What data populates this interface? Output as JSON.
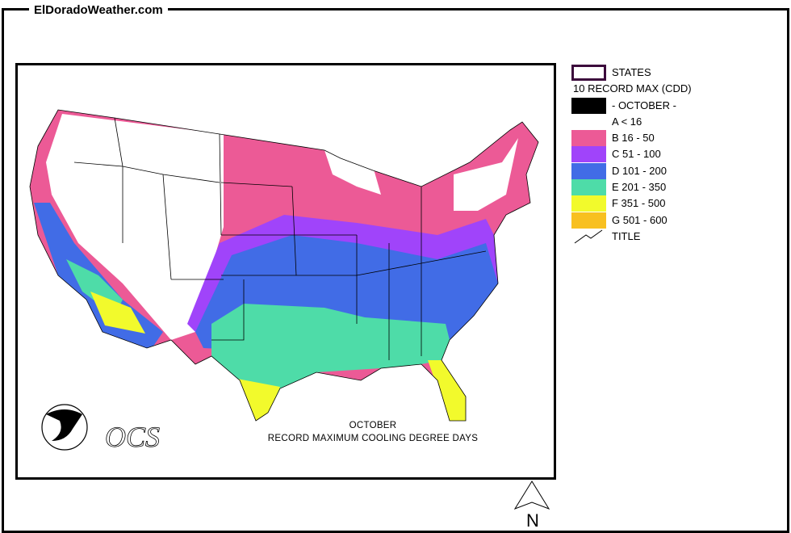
{
  "site_title": "ElDoradoWeather.com",
  "map": {
    "caption_line1": "OCTOBER",
    "caption_line2": "RECORD MAXIMUM COOLING DEGREE DAYS",
    "logo_noaa": "NOAA",
    "logo_ocs": "OCS",
    "north_label": "N"
  },
  "legend": {
    "states_label": "STATES",
    "heading": "10 RECORD MAX (CDD)",
    "month_label": "- OCTOBER -",
    "classes": [
      {
        "label": "A < 16",
        "color": "#ffffff"
      },
      {
        "label": "B 16 - 50",
        "color": "#ec5a96"
      },
      {
        "label": "C 51 - 100",
        "color": "#a044fa"
      },
      {
        "label": "D 101 - 200",
        "color": "#416ce6"
      },
      {
        "label": "E 201 - 350",
        "color": "#4edca8"
      },
      {
        "label": "F 351 - 500",
        "color": "#f2fa2c"
      },
      {
        "label": "G 501 - 600",
        "color": "#f8c020"
      }
    ],
    "title_label": "TITLE",
    "states_border_color": "#3c0a3c"
  }
}
